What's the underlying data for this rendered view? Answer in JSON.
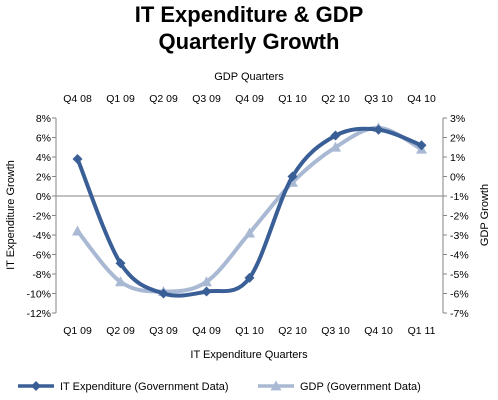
{
  "chart_data": {
    "type": "line",
    "title_line1": "IT Expenditure & GDP",
    "title_line2": "Quarterly Growth",
    "x_top_label": "GDP Quarters",
    "x_bottom_label": "IT Expenditure Quarters",
    "y_left_label": "IT Expenditure Growth",
    "y_right_label": "GDP Growth",
    "top_categories": [
      "Q4 08",
      "Q1 09",
      "Q2 09",
      "Q3 09",
      "Q4 09",
      "Q1 10",
      "Q2 10",
      "Q3 10",
      "Q4 10"
    ],
    "bottom_categories": [
      "Q1 09",
      "Q2 09",
      "Q3 09",
      "Q4 09",
      "Q1 10",
      "Q2 10",
      "Q3 10",
      "Q4 10",
      "Q1 11"
    ],
    "y_left": {
      "min": -12,
      "max": 8,
      "step": 2,
      "tick_labels": [
        "8%",
        "6%",
        "4%",
        "2%",
        "0%",
        "-2%",
        "-4%",
        "-6%",
        "-8%",
        "-10%",
        "-12%"
      ]
    },
    "y_right": {
      "min": -7,
      "max": 3,
      "step": 1,
      "tick_labels": [
        "3%",
        "2%",
        "1%",
        "0%",
        "-1%",
        "-2%",
        "-3%",
        "-4%",
        "-5%",
        "-6%",
        "-7%"
      ]
    },
    "grid": false,
    "legend_position": "bottom",
    "series": [
      {
        "name": "IT Expenditure (Government Data)",
        "axis": "left",
        "marker": "diamond",
        "color": "#3A5F96",
        "values": [
          3.8,
          -6.9,
          -10.0,
          -9.8,
          -8.4,
          2.0,
          6.2,
          6.8,
          5.2
        ]
      },
      {
        "name": "GDP (Government Data)",
        "axis": "right",
        "marker": "triangle",
        "color": "#A9B9D3",
        "values": [
          -2.8,
          -5.4,
          -5.9,
          -5.4,
          -2.9,
          -0.3,
          1.5,
          2.5,
          1.4
        ]
      }
    ]
  }
}
